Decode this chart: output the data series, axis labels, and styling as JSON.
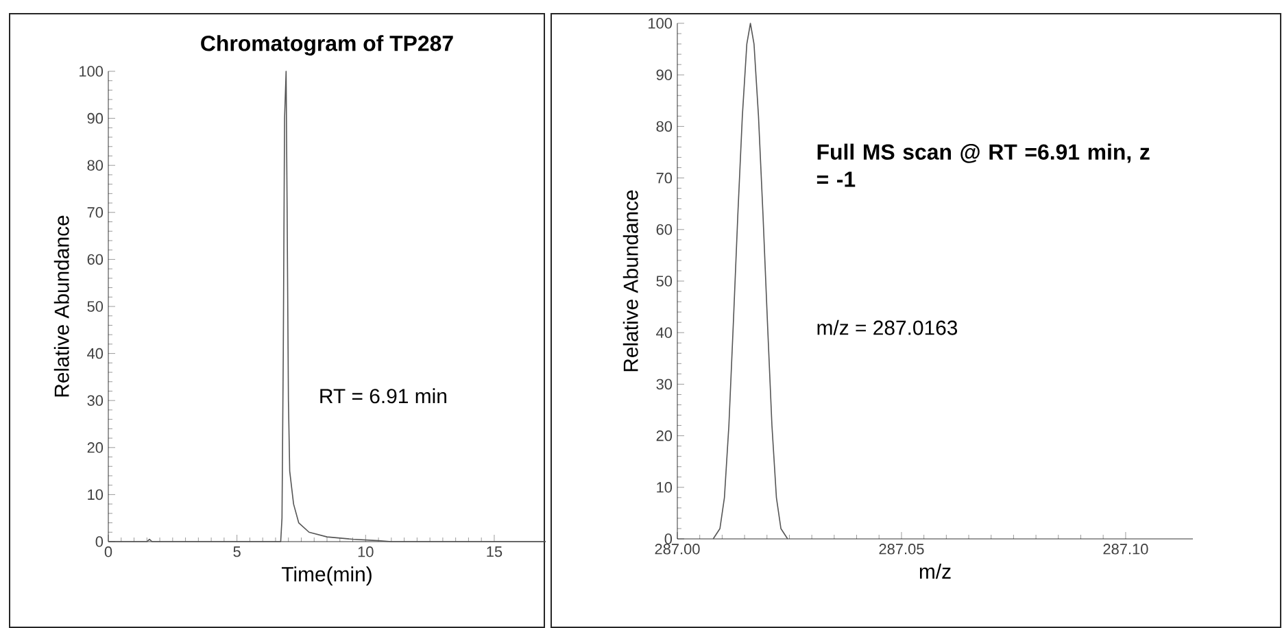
{
  "chart_data": [
    {
      "type": "line",
      "title": "Chromatogram of TP287",
      "xlabel": "Time(min)",
      "ylabel": "Relative Abundance",
      "color": "#555555",
      "annotations": [
        "RT = 6.91 min"
      ],
      "x": [
        0,
        1.5,
        1.6,
        1.7,
        6.7,
        6.75,
        6.8,
        6.85,
        6.91,
        6.95,
        7.0,
        7.05,
        7.2,
        7.4,
        7.8,
        8.5,
        9.5,
        10.5,
        11,
        17
      ],
      "values": [
        0,
        0,
        0.5,
        0,
        0,
        5,
        40,
        90,
        100,
        70,
        30,
        15,
        8,
        4,
        2,
        1,
        0.5,
        0.2,
        0,
        0
      ],
      "xlim": [
        0,
        17
      ],
      "ylim": [
        0,
        100
      ],
      "xticks": [
        0,
        5,
        10,
        15
      ],
      "yticks": [
        0,
        10,
        20,
        30,
        40,
        50,
        60,
        70,
        80,
        90,
        100
      ]
    },
    {
      "type": "line",
      "title": "Full MS scan @ RT =6.91 min, z = -1",
      "xlabel": "m/z",
      "ylabel": "Relative Abundance",
      "color": "#555555",
      "annotations": [
        "m/z = 287.0163"
      ],
      "x": [
        287.008,
        287.0095,
        287.0105,
        287.0115,
        287.0125,
        287.0135,
        287.0145,
        287.0155,
        287.0163,
        287.0171,
        287.0181,
        287.0191,
        287.0201,
        287.0211,
        287.0221,
        287.0231,
        287.0246
      ],
      "values": [
        0,
        2,
        8,
        22,
        42,
        63,
        82,
        96,
        100,
        96,
        82,
        63,
        42,
        22,
        8,
        2,
        0
      ],
      "xlim": [
        287.0,
        287.115
      ],
      "ylim": [
        0,
        100
      ],
      "xticks": [
        {
          "value": 287.0,
          "label": "287.00"
        },
        {
          "value": 287.05,
          "label": "287.05"
        },
        {
          "value": 287.1,
          "label": "287.10"
        }
      ],
      "yticks": [
        0,
        10,
        20,
        30,
        40,
        50,
        60,
        70,
        80,
        90,
        100
      ]
    }
  ]
}
